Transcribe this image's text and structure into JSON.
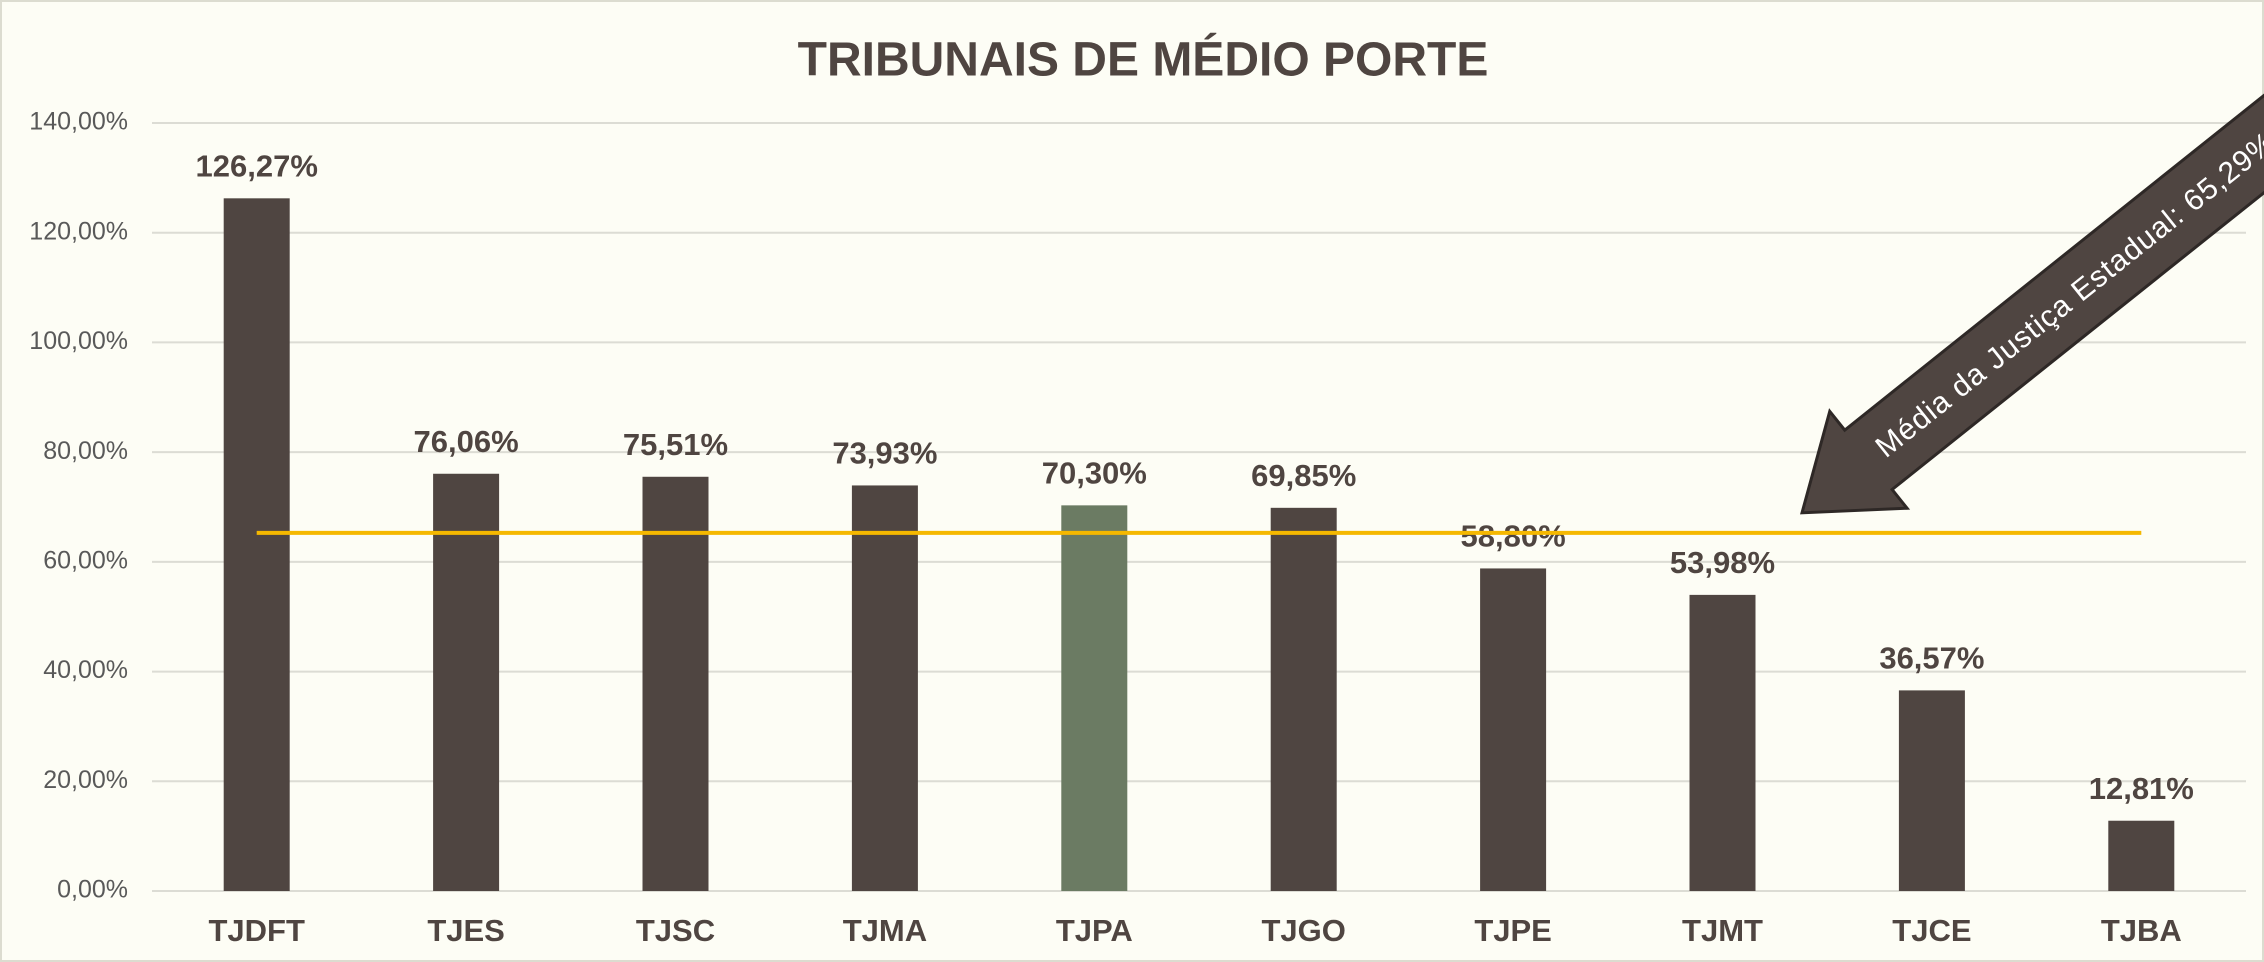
{
  "chart_data": {
    "type": "bar",
    "title": "TRIBUNAIS DE MÉDIO PORTE",
    "categories": [
      "TJDFT",
      "TJES",
      "TJSC",
      "TJMA",
      "TJPA",
      "TJGO",
      "TJPE",
      "TJMT",
      "TJCE",
      "TJBA"
    ],
    "values": [
      126.27,
      76.06,
      75.51,
      73.93,
      70.3,
      69.85,
      58.8,
      53.98,
      36.57,
      12.81
    ],
    "value_labels": [
      "126,27%",
      "76,06%",
      "75,51%",
      "73,93%",
      "70,30%",
      "69,85%",
      "58,80%",
      "53,98%",
      "36,57%",
      "12,81%"
    ],
    "colors": [
      "#4f4541",
      "#4f4541",
      "#4f4541",
      "#4f4541",
      "#6b7b63",
      "#4f4541",
      "#4f4541",
      "#4f4541",
      "#4f4541",
      "#4f4541"
    ],
    "ylim": [
      0,
      140
    ],
    "yticks": [
      {
        "value": 0,
        "label": "0,00%"
      },
      {
        "value": 20,
        "label": "20,00%"
      },
      {
        "value": 40,
        "label": "40,00%"
      },
      {
        "value": 60,
        "label": "60,00%"
      },
      {
        "value": 80,
        "label": "80,00%"
      },
      {
        "value": 100,
        "label": "100,00%"
      },
      {
        "value": 120,
        "label": "120,00%"
      },
      {
        "value": 140,
        "label": "140,00%"
      }
    ],
    "grid": true,
    "reference_line": {
      "value": 65.29,
      "color": "#f5b800",
      "label": "Média da Justiça Estadual: 65,29%"
    }
  }
}
